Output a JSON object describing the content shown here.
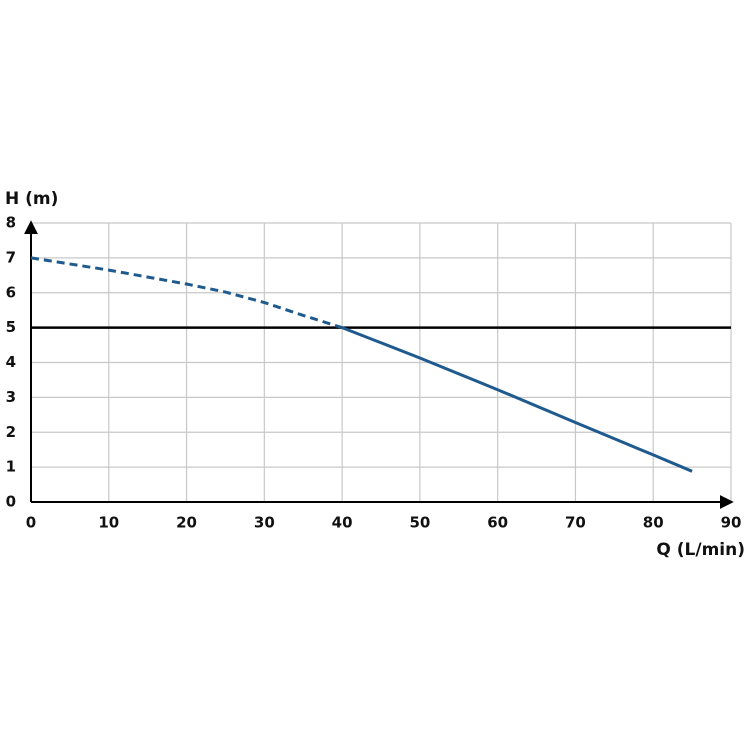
{
  "chart_data": {
    "type": "line",
    "y_label": "H (m)",
    "x_label": "Q (L/min)",
    "x": [
      0,
      10,
      20,
      25,
      30,
      35,
      40,
      50,
      60,
      70,
      80,
      85
    ],
    "series": [
      {
        "color": "#1f5a8f",
        "dashed": true,
        "values": [
          7.0,
          6.65,
          6.25,
          6.02,
          5.72,
          5.35,
          5.0,
          null,
          null,
          null,
          null,
          null
        ]
      },
      {
        "color": "#1f5a8f",
        "dashed": false,
        "values": [
          null,
          null,
          null,
          null,
          null,
          null,
          5.0,
          4.13,
          3.22,
          2.28,
          1.35,
          0.88
        ]
      }
    ],
    "hlines": [
      {
        "value": 5,
        "color": "#000000"
      }
    ],
    "xlim": [
      0,
      90
    ],
    "xticks": [
      0,
      10,
      20,
      30,
      40,
      50,
      60,
      70,
      80,
      90
    ],
    "ylim": [
      0,
      8
    ],
    "yticks": [
      0,
      1,
      2,
      3,
      4,
      5,
      6,
      7,
      8
    ],
    "grid": true
  }
}
